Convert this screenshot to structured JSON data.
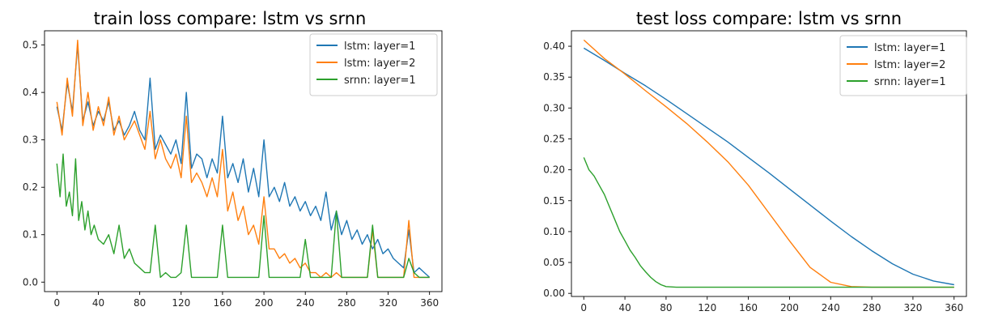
{
  "chart_data": [
    {
      "type": "line",
      "title": "train loss compare: lstm vs srnn",
      "xlabel": "",
      "ylabel": "",
      "xlim": [
        -12,
        372
      ],
      "ylim": [
        -0.02,
        0.53
      ],
      "xticks": [
        "0",
        "40",
        "80",
        "120",
        "160",
        "200",
        "240",
        "280",
        "320",
        "360"
      ],
      "yticks": [
        "0.0",
        "0.1",
        "0.2",
        "0.3",
        "0.4",
        "0.5"
      ],
      "legend_position": "top-right",
      "grid": false,
      "series": [
        {
          "name": "lstm: layer=1",
          "color": "#1f77b4",
          "x": [
            0,
            5,
            10,
            15,
            20,
            25,
            30,
            35,
            40,
            45,
            50,
            55,
            60,
            65,
            70,
            75,
            80,
            85,
            90,
            95,
            100,
            105,
            110,
            115,
            120,
            125,
            130,
            135,
            140,
            145,
            150,
            155,
            160,
            165,
            170,
            175,
            180,
            185,
            190,
            195,
            200,
            205,
            210,
            215,
            220,
            225,
            230,
            235,
            240,
            245,
            250,
            255,
            260,
            265,
            270,
            275,
            280,
            285,
            290,
            295,
            300,
            305,
            310,
            315,
            320,
            325,
            330,
            335,
            340,
            345,
            350,
            355,
            360
          ],
          "values": [
            0.37,
            0.32,
            0.42,
            0.36,
            0.5,
            0.34,
            0.38,
            0.33,
            0.36,
            0.34,
            0.38,
            0.32,
            0.34,
            0.31,
            0.33,
            0.36,
            0.32,
            0.3,
            0.43,
            0.28,
            0.31,
            0.29,
            0.27,
            0.3,
            0.25,
            0.4,
            0.24,
            0.27,
            0.26,
            0.22,
            0.26,
            0.23,
            0.35,
            0.22,
            0.25,
            0.21,
            0.26,
            0.19,
            0.24,
            0.18,
            0.3,
            0.18,
            0.2,
            0.17,
            0.21,
            0.16,
            0.18,
            0.15,
            0.17,
            0.14,
            0.16,
            0.13,
            0.19,
            0.11,
            0.15,
            0.1,
            0.13,
            0.09,
            0.11,
            0.08,
            0.1,
            0.07,
            0.09,
            0.06,
            0.07,
            0.05,
            0.04,
            0.03,
            0.11,
            0.02,
            0.03,
            0.02,
            0.01
          ]
        },
        {
          "name": "lstm: layer=2",
          "color": "#ff7f0e",
          "x": [
            0,
            5,
            10,
            15,
            20,
            25,
            30,
            35,
            40,
            45,
            50,
            55,
            60,
            65,
            70,
            75,
            80,
            85,
            90,
            95,
            100,
            105,
            110,
            115,
            120,
            125,
            130,
            135,
            140,
            145,
            150,
            155,
            160,
            165,
            170,
            175,
            180,
            185,
            190,
            195,
            200,
            205,
            210,
            215,
            220,
            225,
            230,
            235,
            240,
            245,
            250,
            255,
            260,
            265,
            270,
            275,
            280,
            285,
            290,
            295,
            300,
            305,
            310,
            315,
            320,
            325,
            330,
            335,
            340,
            345,
            350,
            355,
            360
          ],
          "values": [
            0.38,
            0.31,
            0.43,
            0.35,
            0.51,
            0.33,
            0.4,
            0.32,
            0.37,
            0.33,
            0.39,
            0.31,
            0.35,
            0.3,
            0.32,
            0.34,
            0.31,
            0.28,
            0.36,
            0.26,
            0.3,
            0.26,
            0.24,
            0.27,
            0.22,
            0.35,
            0.21,
            0.23,
            0.21,
            0.18,
            0.22,
            0.18,
            0.28,
            0.15,
            0.19,
            0.13,
            0.16,
            0.1,
            0.12,
            0.08,
            0.18,
            0.07,
            0.07,
            0.05,
            0.06,
            0.04,
            0.05,
            0.03,
            0.04,
            0.02,
            0.02,
            0.01,
            0.02,
            0.01,
            0.02,
            0.01,
            0.01,
            0.01,
            0.01,
            0.01,
            0.01,
            0.11,
            0.01,
            0.01,
            0.01,
            0.01,
            0.01,
            0.01,
            0.13,
            0.01,
            0.01,
            0.01,
            0.01
          ]
        },
        {
          "name": "srnn: layer=1",
          "color": "#2ca02c",
          "x": [
            0,
            3,
            6,
            9,
            12,
            15,
            18,
            21,
            24,
            27,
            30,
            33,
            36,
            40,
            45,
            50,
            55,
            60,
            65,
            70,
            75,
            80,
            85,
            90,
            95,
            100,
            105,
            110,
            115,
            120,
            125,
            130,
            135,
            140,
            145,
            150,
            155,
            160,
            165,
            170,
            175,
            180,
            185,
            190,
            195,
            200,
            205,
            210,
            215,
            220,
            225,
            230,
            235,
            240,
            245,
            250,
            255,
            260,
            265,
            270,
            275,
            280,
            285,
            290,
            295,
            300,
            305,
            310,
            315,
            320,
            325,
            330,
            335,
            340,
            345,
            350,
            355,
            360
          ],
          "values": [
            0.25,
            0.18,
            0.27,
            0.16,
            0.19,
            0.14,
            0.26,
            0.13,
            0.17,
            0.11,
            0.15,
            0.1,
            0.12,
            0.09,
            0.08,
            0.1,
            0.06,
            0.12,
            0.05,
            0.07,
            0.04,
            0.03,
            0.02,
            0.02,
            0.12,
            0.01,
            0.02,
            0.01,
            0.01,
            0.02,
            0.12,
            0.01,
            0.01,
            0.01,
            0.01,
            0.01,
            0.01,
            0.12,
            0.01,
            0.01,
            0.01,
            0.01,
            0.01,
            0.01,
            0.01,
            0.14,
            0.01,
            0.01,
            0.01,
            0.01,
            0.01,
            0.01,
            0.01,
            0.09,
            0.01,
            0.01,
            0.01,
            0.01,
            0.01,
            0.15,
            0.01,
            0.01,
            0.01,
            0.01,
            0.01,
            0.01,
            0.12,
            0.01,
            0.01,
            0.01,
            0.01,
            0.01,
            0.01,
            0.05,
            0.02,
            0.01,
            0.01,
            0.01
          ]
        }
      ]
    },
    {
      "type": "line",
      "title": "test loss compare: lstm vs srnn",
      "xlabel": "",
      "ylabel": "",
      "xlim": [
        -12,
        372
      ],
      "ylim": [
        -0.005,
        0.425
      ],
      "xticks": [
        "0",
        "40",
        "80",
        "120",
        "160",
        "200",
        "240",
        "280",
        "320",
        "360"
      ],
      "yticks": [
        "0.00",
        "0.05",
        "0.10",
        "0.15",
        "0.20",
        "0.25",
        "0.30",
        "0.35",
        "0.40"
      ],
      "legend_position": "top-right",
      "grid": false,
      "series": [
        {
          "name": "lstm: layer=1",
          "color": "#1f77b4",
          "x": [
            0,
            20,
            40,
            60,
            80,
            100,
            120,
            140,
            160,
            180,
            200,
            220,
            240,
            260,
            280,
            300,
            320,
            340,
            360
          ],
          "values": [
            0.397,
            0.377,
            0.356,
            0.336,
            0.314,
            0.291,
            0.268,
            0.245,
            0.22,
            0.195,
            0.169,
            0.143,
            0.117,
            0.092,
            0.069,
            0.048,
            0.031,
            0.02,
            0.014
          ]
        },
        {
          "name": "lstm: layer=2",
          "color": "#ff7f0e",
          "x": [
            0,
            20,
            40,
            60,
            80,
            100,
            120,
            140,
            160,
            180,
            200,
            220,
            240,
            260,
            280,
            300,
            320,
            340,
            360
          ],
          "values": [
            0.41,
            0.38,
            0.355,
            0.328,
            0.302,
            0.275,
            0.245,
            0.213,
            0.175,
            0.13,
            0.085,
            0.042,
            0.018,
            0.011,
            0.01,
            0.01,
            0.01,
            0.01,
            0.01
          ]
        },
        {
          "name": "srnn: layer=1",
          "color": "#2ca02c",
          "x": [
            0,
            5,
            10,
            15,
            20,
            25,
            30,
            35,
            40,
            45,
            50,
            55,
            60,
            65,
            70,
            75,
            80,
            90,
            100,
            120,
            140,
            160,
            180,
            200,
            220,
            240,
            260,
            280,
            300,
            320,
            340,
            360
          ],
          "values": [
            0.22,
            0.2,
            0.19,
            0.175,
            0.16,
            0.14,
            0.12,
            0.1,
            0.085,
            0.07,
            0.058,
            0.045,
            0.035,
            0.026,
            0.019,
            0.014,
            0.011,
            0.01,
            0.01,
            0.01,
            0.01,
            0.01,
            0.01,
            0.01,
            0.01,
            0.01,
            0.01,
            0.01,
            0.01,
            0.01,
            0.01,
            0.01
          ]
        }
      ]
    }
  ]
}
